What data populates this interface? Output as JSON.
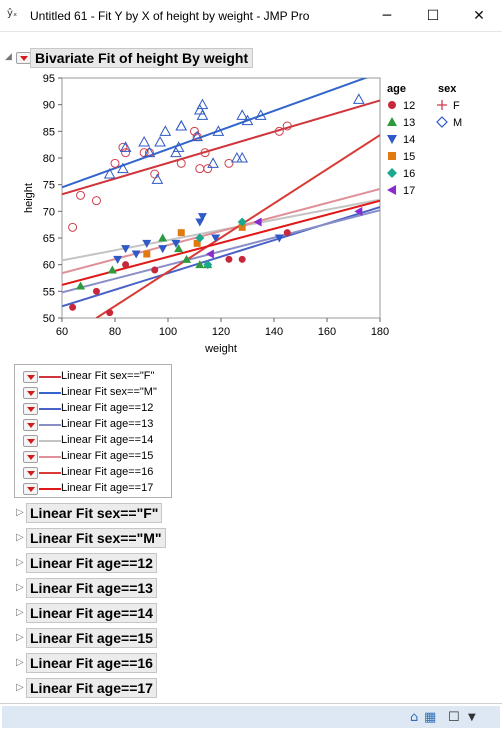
{
  "window": {
    "title": "Untitled 61 - Fit Y by X of height by weight - JMP Pro",
    "app_icon": "y-x-icon",
    "minimize": "─",
    "maximize": "☐",
    "close": "✕"
  },
  "report": {
    "title": "Bivariate Fit of height By weight"
  },
  "chart_data": {
    "type": "scatter",
    "xlabel": "weight",
    "ylabel": "height",
    "xlim": [
      60,
      180
    ],
    "ylim": [
      50,
      95
    ],
    "xticks": [
      60,
      80,
      100,
      120,
      140,
      160,
      180
    ],
    "yticks": [
      50,
      55,
      60,
      65,
      70,
      75,
      80,
      85,
      90,
      95
    ],
    "grid": false,
    "legend": {
      "age_title": "age",
      "sex_title": "sex",
      "age": [
        {
          "label": "12",
          "color": "#c8283c",
          "marker": "circle"
        },
        {
          "label": "13",
          "color": "#2e9a3e",
          "marker": "triangle-up"
        },
        {
          "label": "14",
          "color": "#2f59c4",
          "marker": "triangle-down"
        },
        {
          "label": "15",
          "color": "#e07a10",
          "marker": "square"
        },
        {
          "label": "16",
          "color": "#1aa98e",
          "marker": "diamond"
        },
        {
          "label": "17",
          "color": "#8a2bd0",
          "marker": "triangle-left"
        }
      ],
      "sex": [
        {
          "label": "F",
          "color": "#d04050",
          "marker": "plus"
        },
        {
          "label": "M",
          "color": "#2f59c4",
          "marker": "open-diamond"
        }
      ]
    },
    "points_age": [
      {
        "age": "12",
        "x": [
          64,
          73,
          78,
          84,
          95,
          123,
          128,
          145
        ],
        "y": [
          52,
          55,
          51,
          60,
          59,
          61,
          61,
          66
        ]
      },
      {
        "age": "13",
        "x": [
          67,
          79,
          98,
          104,
          107,
          112,
          115
        ],
        "y": [
          56,
          59,
          65,
          63,
          61,
          60,
          60
        ]
      },
      {
        "age": "14",
        "x": [
          81,
          84,
          88,
          92,
          98,
          103,
          112,
          113,
          118,
          142
        ],
        "y": [
          61,
          63,
          62,
          64,
          63,
          64,
          68,
          69,
          65,
          65
        ]
      },
      {
        "age": "15",
        "x": [
          92,
          105,
          111,
          128
        ],
        "y": [
          62,
          66,
          64,
          67
        ]
      },
      {
        "age": "16",
        "x": [
          112,
          115,
          128
        ],
        "y": [
          65,
          60,
          68
        ]
      },
      {
        "age": "17",
        "x": [
          116,
          134,
          172
        ],
        "y": [
          62,
          68,
          70
        ]
      }
    ],
    "points_sex": [
      {
        "sex": "F",
        "x": [
          64,
          67,
          73,
          80,
          83,
          84,
          91,
          93,
          95,
          105,
          110,
          111,
          112,
          114,
          115,
          123,
          142,
          145
        ],
        "y": [
          67,
          73,
          72,
          79,
          82,
          81,
          81,
          81,
          77,
          79,
          85,
          84,
          78,
          81,
          78,
          79,
          85,
          86
        ]
      },
      {
        "sex": "M",
        "x": [
          78,
          83,
          84,
          91,
          93,
          96,
          97,
          99,
          103,
          104,
          105,
          105,
          111,
          112,
          113,
          113,
          117,
          119,
          126,
          128,
          128,
          130,
          135,
          172
        ],
        "y": [
          77,
          78,
          82,
          83,
          81,
          76,
          83,
          85,
          81,
          82,
          86,
          86,
          84,
          89,
          90,
          88,
          79,
          85,
          80,
          80,
          88,
          87,
          88,
          91
        ]
      }
    ],
    "fit_lines": [
      {
        "name": "Linear Fit sex==\"F\"",
        "color": "#d0343c",
        "width": 2,
        "x": [
          60,
          180
        ],
        "y": [
          73.2,
          90.8
        ]
      },
      {
        "name": "Linear Fit sex==\"M\"",
        "color": "#3366cc",
        "width": 2,
        "x": [
          60,
          180
        ],
        "y": [
          74.5,
          96
        ]
      },
      {
        "name": "Linear Fit age==12",
        "color": "#4a62c8",
        "width": 2,
        "x": [
          60,
          180
        ],
        "y": [
          52.2,
          70.8
        ]
      },
      {
        "name": "Linear Fit age==13",
        "color": "#8a8ec8",
        "width": 2,
        "x": [
          60,
          180
        ],
        "y": [
          54.8,
          70.2
        ]
      },
      {
        "name": "Linear Fit age==14",
        "color": "#c4c4c4",
        "width": 2,
        "x": [
          60,
          180
        ],
        "y": [
          60.8,
          72.2
        ]
      },
      {
        "name": "Linear Fit age==15",
        "color": "#e09098",
        "width": 2,
        "x": [
          60,
          180
        ],
        "y": [
          58.4,
          74.2
        ]
      },
      {
        "name": "Linear Fit age==16",
        "color": "#d83a34",
        "width": 2,
        "x": [
          73,
          180
        ],
        "y": [
          50,
          84.3
        ]
      },
      {
        "name": "Linear Fit age==17",
        "color": "#e01818",
        "width": 2,
        "x": [
          60,
          180
        ],
        "y": [
          56.2,
          72
        ]
      }
    ]
  },
  "fits_legend": [
    {
      "label": "Linear Fit sex==\"F\"",
      "color": "#d0343c"
    },
    {
      "label": "Linear Fit sex==\"M\"",
      "color": "#3366cc"
    },
    {
      "label": "Linear Fit age==12",
      "color": "#4a62c8"
    },
    {
      "label": "Linear Fit age==13",
      "color": "#8a8ec8"
    },
    {
      "label": "Linear Fit age==14",
      "color": "#c4c4c4"
    },
    {
      "label": "Linear Fit age==15",
      "color": "#e09098"
    },
    {
      "label": "Linear Fit age==16",
      "color": "#d83a34"
    },
    {
      "label": "Linear Fit age==17",
      "color": "#e01818"
    }
  ],
  "fit_reports": [
    "Linear Fit sex==\"F\"",
    "Linear Fit sex==\"M\"",
    "Linear Fit age==12",
    "Linear Fit age==13",
    "Linear Fit age==14",
    "Linear Fit age==15",
    "Linear Fit age==16",
    "Linear Fit age==17"
  ],
  "statusbar": {
    "home_icon": "⌂",
    "grid_icon": "▦",
    "check_icon": "☐",
    "dropdown": "▼"
  }
}
